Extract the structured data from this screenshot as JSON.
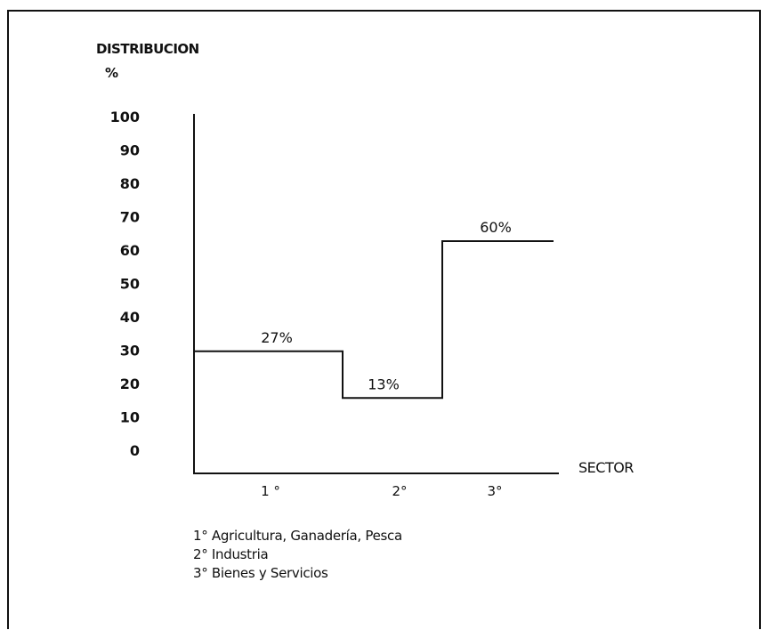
{
  "chart_data": {
    "type": "line",
    "style": "step",
    "ylabel": [
      "DISTRIBUCION",
      "%"
    ],
    "xlabel": "SECTOR",
    "yticks": [
      "100",
      "90",
      "80",
      "70",
      "60",
      "50",
      "40",
      "30",
      "20",
      "10",
      "0"
    ],
    "ylim": [
      0,
      100
    ],
    "categories": [
      "1 °",
      "2°",
      "3°"
    ],
    "values": [
      27,
      13,
      60
    ],
    "value_labels": [
      "27%",
      "13%",
      "60%"
    ],
    "grid": false,
    "color": "#111111"
  },
  "legend": {
    "items": [
      "1° Agricultura, Ganadería, Pesca",
      "2° Industria",
      "3° Bienes y Servicios"
    ]
  }
}
